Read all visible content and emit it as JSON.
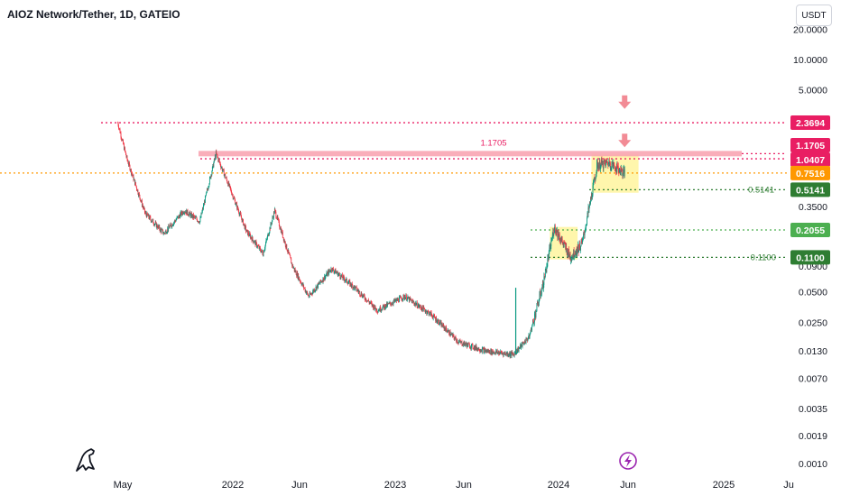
{
  "header": {
    "symbol": "AIOZ Network/Tether, 1D, GATEIO"
  },
  "currency_button": "USDT",
  "chart_data": {
    "type": "candlestick",
    "title": "AIOZ Network/Tether, 1D, GATEIO",
    "yscale": "log",
    "ylim": [
      0.0009,
      28
    ],
    "y_ticks": [
      "20.0000",
      "10.0000",
      "5.0000",
      "0.3500",
      "0.0900",
      "0.0500",
      "0.0250",
      "0.0130",
      "0.0070",
      "0.0035",
      "0.0019",
      "0.0010"
    ],
    "x_ticks": [
      "May",
      "2022",
      "Jun",
      "2023",
      "Jun",
      "2024",
      "Jun",
      "2025",
      "Ju"
    ],
    "approx_close_path": [
      {
        "t": "2021-04-20",
        "v": 2.3694
      },
      {
        "t": "2021-05-10",
        "v": 1.05
      },
      {
        "t": "2021-06-20",
        "v": 0.3
      },
      {
        "t": "2021-08-01",
        "v": 0.19
      },
      {
        "t": "2021-09-15",
        "v": 0.32
      },
      {
        "t": "2021-10-20",
        "v": 0.25
      },
      {
        "t": "2021-11-25",
        "v": 1.1705
      },
      {
        "t": "2021-12-25",
        "v": 0.55
      },
      {
        "t": "2022-02-01",
        "v": 0.2
      },
      {
        "t": "2022-03-10",
        "v": 0.12
      },
      {
        "t": "2022-04-05",
        "v": 0.32
      },
      {
        "t": "2022-05-15",
        "v": 0.09
      },
      {
        "t": "2022-06-20",
        "v": 0.045
      },
      {
        "t": "2022-08-10",
        "v": 0.085
      },
      {
        "t": "2022-10-01",
        "v": 0.055
      },
      {
        "t": "2022-11-20",
        "v": 0.033
      },
      {
        "t": "2023-01-20",
        "v": 0.045
      },
      {
        "t": "2023-03-20",
        "v": 0.03
      },
      {
        "t": "2023-05-20",
        "v": 0.016
      },
      {
        "t": "2023-07-20",
        "v": 0.013
      },
      {
        "t": "2023-09-20",
        "v": 0.012
      },
      {
        "t": "2023-10-25",
        "v": 0.018
      },
      {
        "t": "2023-11-25",
        "v": 0.06
      },
      {
        "t": "2023-12-20",
        "v": 0.22
      },
      {
        "t": "2024-01-25",
        "v": 0.11
      },
      {
        "t": "2024-02-20",
        "v": 0.15
      },
      {
        "t": "2024-03-10",
        "v": 0.4
      },
      {
        "t": "2024-03-25",
        "v": 0.9
      },
      {
        "t": "2024-04-20",
        "v": 0.95
      },
      {
        "t": "2024-05-25",
        "v": 0.75
      }
    ],
    "spike": {
      "t": "2023-09-25",
      "high": 0.055
    },
    "levels": [
      {
        "value": 2.3694,
        "label": "2.3694",
        "color": "#e91e63",
        "style": "dotted"
      },
      {
        "value": 1.1705,
        "label": "1.1705",
        "color": "#e91e63",
        "style": "band",
        "band_label": "1.1705"
      },
      {
        "value": 1.0407,
        "label": "1.0407",
        "color": "#e91e63",
        "style": "dotted"
      },
      {
        "value": 0.7516,
        "label": "0.7516",
        "color": "#ff9800",
        "style": "dotted"
      },
      {
        "value": 0.5141,
        "label": "0.5141",
        "color": "#2e7d32",
        "style": "dotted",
        "left_label": "0.5141"
      },
      {
        "value": 0.2055,
        "label": "0.2055",
        "color": "#4caf50",
        "style": "dotted"
      },
      {
        "value": 0.11,
        "label": "0.1100",
        "color": "#2e7d32",
        "style": "dotted",
        "left_label": "0.1100"
      }
    ],
    "zones": [
      {
        "from": "2023-12-10",
        "to": "2024-02-10",
        "low": 0.105,
        "high": 0.22
      },
      {
        "from": "2024-03-12",
        "to": "2024-06-25",
        "low": 0.48,
        "high": 1.17
      }
    ],
    "arrows": [
      {
        "t": "2024-05-25",
        "v": 3.6
      },
      {
        "t": "2024-05-25",
        "v": 1.5
      }
    ],
    "colors": {
      "up": "#089981",
      "down": "#f23645",
      "zone": "#fff59d",
      "band": "#f8a5b3"
    }
  }
}
